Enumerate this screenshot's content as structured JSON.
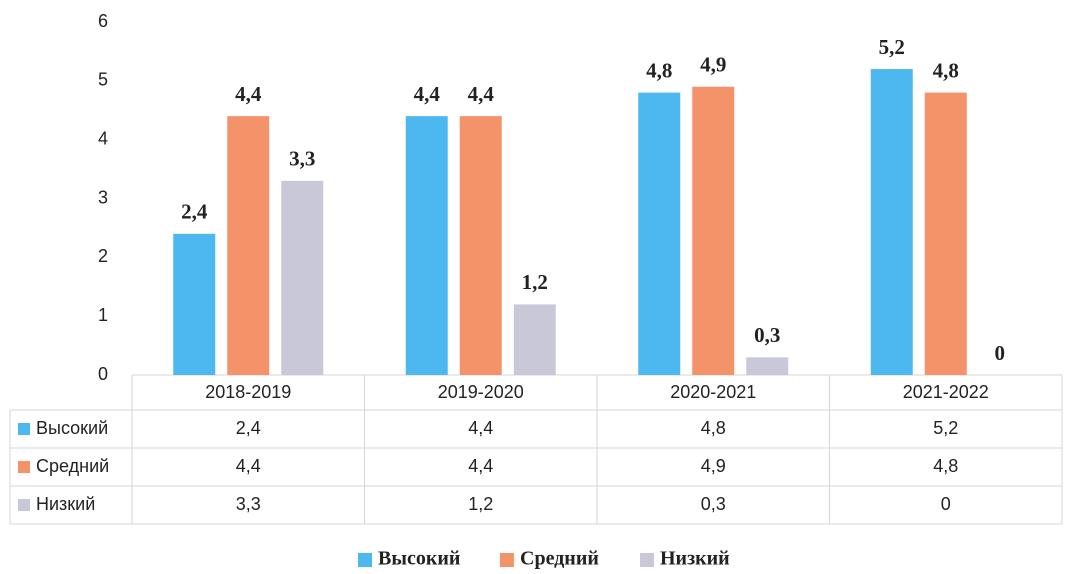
{
  "chart_data": {
    "type": "bar",
    "categories": [
      "2018-2019",
      "2019-2020",
      "2020-2021",
      "2021-2022"
    ],
    "series": [
      {
        "name": "Высокий",
        "color": "#4db8f0",
        "values": [
          2.4,
          4.4,
          4.8,
          5.2
        ],
        "value_labels": [
          "2,4",
          "4,4",
          "4,8",
          "5,2"
        ]
      },
      {
        "name": "Средний",
        "color": "#f4926a",
        "values": [
          4.4,
          4.4,
          4.9,
          4.8
        ],
        "value_labels": [
          "4,4",
          "4,4",
          "4,9",
          "4,8"
        ]
      },
      {
        "name": "Низкий",
        "color": "#c9c8d9",
        "values": [
          3.3,
          1.2,
          0.3,
          0
        ],
        "value_labels": [
          "3,3",
          "1,2",
          "0,3",
          "0"
        ]
      }
    ],
    "ylim": [
      0,
      6
    ],
    "yticks": [
      0,
      1,
      2,
      3,
      4,
      5,
      6
    ],
    "grid": false,
    "legend": "bottom",
    "data_table": true
  }
}
